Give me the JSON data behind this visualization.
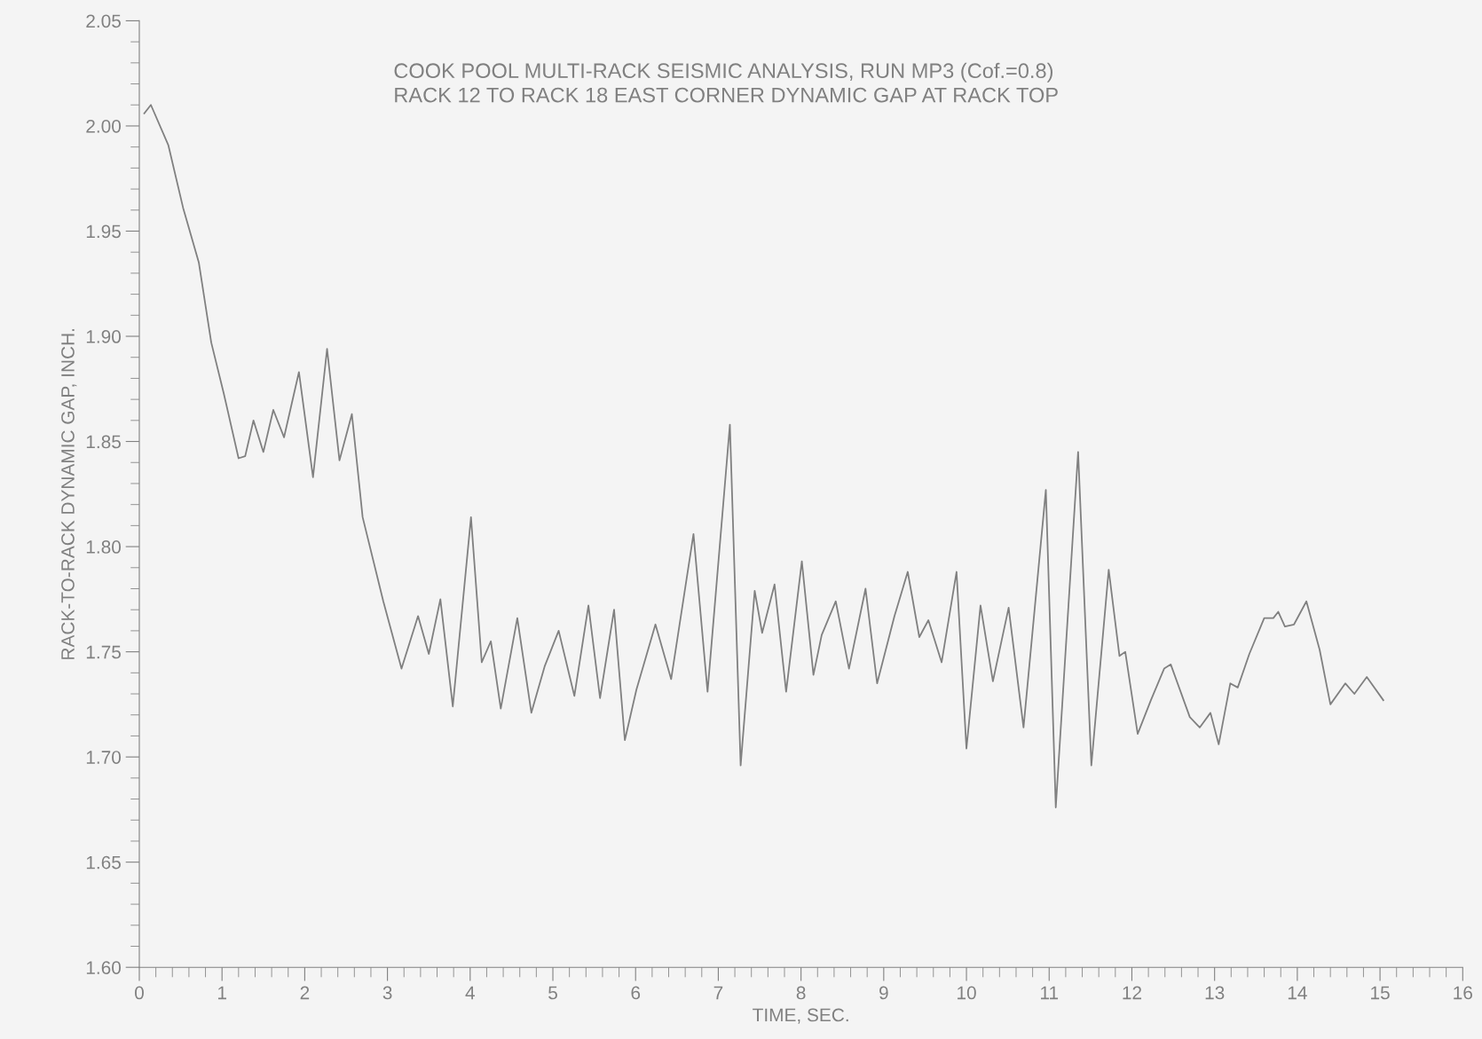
{
  "chart_data": {
    "type": "line",
    "title": "COOK POOL MULTI-RACK SEISMIC ANALYSIS, RUN MP3 (Cof.=0.8)",
    "subtitle": "RACK 12 TO RACK 18 EAST CORNER DYNAMIC GAP AT RACK TOP",
    "xlabel": "TIME, SEC.",
    "ylabel": "RACK-TO-RACK DYNAMIC GAP, INCH.",
    "xlim": [
      0,
      16
    ],
    "xticks": [
      0,
      1,
      2,
      3,
      4,
      5,
      6,
      7,
      8,
      9,
      10,
      11,
      12,
      13,
      14,
      15,
      16
    ],
    "ylim": [
      1.6,
      2.05
    ],
    "yticks": [
      {
        "value": 1.6,
        "label": "1.60"
      },
      {
        "value": 1.65,
        "label": "1.65"
      },
      {
        "value": 1.7,
        "label": "1.70"
      },
      {
        "value": 1.75,
        "label": "1.75"
      },
      {
        "value": 1.8,
        "label": "1.80"
      },
      {
        "value": 1.85,
        "label": "1.85"
      },
      {
        "value": 1.9,
        "label": "1.90"
      },
      {
        "value": 1.95,
        "label": "1.95"
      },
      {
        "value": 2.0,
        "label": "2.00"
      },
      {
        "value": 2.05,
        "label": "2.05"
      }
    ],
    "grid": false,
    "legend": false,
    "marker": "none",
    "line_style": "solid",
    "series": [
      {
        "color": "#808080",
        "x": [
          0.06,
          0.14,
          0.35,
          0.53,
          0.72,
          0.87,
          1.02,
          1.2,
          1.28,
          1.38,
          1.5,
          1.62,
          1.75,
          1.93,
          2.1,
          2.27,
          2.42,
          2.57,
          2.7,
          2.95,
          3.17,
          3.37,
          3.5,
          3.64,
          3.79,
          4.01,
          4.14,
          4.25,
          4.37,
          4.57,
          4.74,
          4.9,
          5.07,
          5.26,
          5.43,
          5.57,
          5.74,
          5.87,
          6.01,
          6.24,
          6.43,
          6.7,
          6.87,
          7.14,
          7.27,
          7.44,
          7.53,
          7.68,
          7.82,
          8.01,
          8.15,
          8.25,
          8.42,
          8.46,
          8.58,
          8.78,
          8.92,
          9.13,
          9.29,
          9.43,
          9.54,
          9.7,
          9.88,
          10.0,
          10.17,
          10.32,
          10.51,
          10.69,
          10.96,
          11.08,
          11.35,
          11.51,
          11.72,
          11.85,
          11.92,
          12.07,
          12.23,
          12.39,
          12.47,
          12.7,
          12.82,
          12.95,
          13.05,
          13.19,
          13.28,
          13.42,
          13.6,
          13.71,
          13.77,
          13.85,
          13.96,
          14.11,
          14.27,
          14.4,
          14.58,
          14.69,
          14.84,
          15.04
        ],
        "values": [
          2.006,
          2.01,
          1.991,
          1.961,
          1.935,
          1.897,
          1.873,
          1.842,
          1.843,
          1.86,
          1.845,
          1.865,
          1.852,
          1.883,
          1.833,
          1.894,
          1.841,
          1.863,
          1.814,
          1.774,
          1.742,
          1.767,
          1.749,
          1.775,
          1.724,
          1.814,
          1.745,
          1.755,
          1.723,
          1.766,
          1.721,
          1.743,
          1.76,
          1.729,
          1.772,
          1.728,
          1.77,
          1.708,
          1.732,
          1.763,
          1.737,
          1.806,
          1.731,
          1.858,
          1.696,
          1.779,
          1.759,
          1.782,
          1.731,
          1.793,
          1.739,
          1.758,
          1.774,
          1.766,
          1.742,
          1.78,
          1.735,
          1.767,
          1.788,
          1.757,
          1.765,
          1.745,
          1.788,
          1.704,
          1.772,
          1.736,
          1.771,
          1.714,
          1.827,
          1.676,
          1.845,
          1.696,
          1.789,
          1.748,
          1.75,
          1.711,
          1.727,
          1.742,
          1.744,
          1.719,
          1.714,
          1.721,
          1.706,
          1.735,
          1.733,
          1.749,
          1.766,
          1.766,
          1.769,
          1.762,
          1.763,
          1.774,
          1.751,
          1.725,
          1.735,
          1.73,
          1.738,
          1.727
        ]
      }
    ]
  }
}
